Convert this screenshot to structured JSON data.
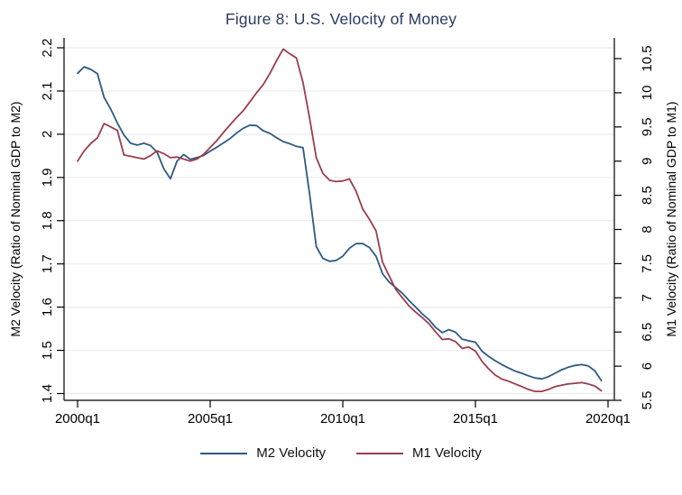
{
  "title": "Figure 8: U.S. Velocity of Money",
  "colors": {
    "m2_line": "#2e5a82",
    "m1_line": "#9b3d4d",
    "title_text": "#2b3a64",
    "gridline": "#eaecf0",
    "axis": "#000000"
  },
  "axes": {
    "left": {
      "title": "M2 Velocity (Ratio of Nominal GDP to M2)",
      "ticks": [
        "1.4",
        "1.5",
        "1.6",
        "1.7",
        "1.8",
        "1.9",
        "2",
        "2.1",
        "2.2"
      ],
      "range": [
        1.4,
        2.2
      ]
    },
    "right": {
      "title": "M1 Velocity (Ratio of Nominal GDP to M1)",
      "ticks": [
        "5.5",
        "6",
        "6.5",
        "7",
        "7.5",
        "8",
        "8.5",
        "9",
        "9.5",
        "10",
        "10.5"
      ],
      "range": [
        5.5,
        10.5
      ]
    },
    "x": {
      "ticks": [
        {
          "label": "2000q1",
          "q": 0
        },
        {
          "label": "2005q1",
          "q": 20
        },
        {
          "label": "2010q1",
          "q": 40
        },
        {
          "label": "2015q1",
          "q": 60
        },
        {
          "label": "2020q1",
          "q": 80
        }
      ],
      "range_quarters": [
        "2000q1",
        "2020q1"
      ]
    }
  },
  "legend": {
    "items": [
      {
        "label": "M2 Velocity",
        "color": "#2e5a82"
      },
      {
        "label": "M1 Velocity",
        "color": "#9b3d4d"
      }
    ]
  },
  "chart_data": {
    "type": "line",
    "title": "Figure 8: U.S. Velocity of Money",
    "x_start": "2000q1",
    "x_end": "2019q4",
    "frequency": "quarterly",
    "x_axis_range": [
      "2000q1",
      "2020q1"
    ],
    "grid": "horizontal",
    "legend_position": "bottom",
    "series": [
      {
        "name": "M2 Velocity",
        "axis": "left",
        "color": "#2e5a82",
        "ylabel": "M2 Velocity (Ratio of Nominal GDP to M2)",
        "ylim": [
          1.4,
          2.2
        ],
        "values": [
          2.141,
          2.156,
          2.15,
          2.14,
          2.085,
          2.058,
          2.026,
          1.998,
          1.979,
          1.975,
          1.979,
          1.974,
          1.958,
          1.92,
          1.897,
          1.938,
          1.953,
          1.942,
          1.946,
          1.951,
          1.961,
          1.97,
          1.98,
          1.99,
          2.003,
          2.014,
          2.021,
          2.02,
          2.008,
          2.002,
          1.992,
          1.983,
          1.978,
          1.972,
          1.969,
          1.86,
          1.74,
          1.713,
          1.706,
          1.708,
          1.718,
          1.736,
          1.747,
          1.747,
          1.738,
          1.718,
          1.677,
          1.658,
          1.645,
          1.632,
          1.615,
          1.6,
          1.584,
          1.571,
          1.553,
          1.541,
          1.548,
          1.542,
          1.526,
          1.522,
          1.519,
          1.498,
          1.486,
          1.476,
          1.467,
          1.459,
          1.452,
          1.447,
          1.441,
          1.436,
          1.434,
          1.439,
          1.447,
          1.455,
          1.461,
          1.465,
          1.467,
          1.464,
          1.453,
          1.43
        ]
      },
      {
        "name": "M1 Velocity",
        "axis": "right",
        "color": "#9b3d4d",
        "ylabel": "M1 Velocity (Ratio of Nominal GDP to M1)",
        "ylim": [
          5.5,
          10.5
        ],
        "values": [
          9.0,
          9.15,
          9.26,
          9.34,
          9.55,
          9.5,
          9.45,
          9.09,
          9.07,
          9.05,
          9.03,
          9.08,
          9.15,
          9.11,
          9.05,
          9.06,
          9.03,
          9.0,
          9.03,
          9.1,
          9.2,
          9.3,
          9.42,
          9.53,
          9.64,
          9.74,
          9.87,
          10.0,
          10.12,
          10.28,
          10.47,
          10.64,
          10.57,
          10.51,
          10.15,
          9.62,
          9.05,
          8.82,
          8.72,
          8.7,
          8.71,
          8.74,
          8.56,
          8.3,
          8.15,
          7.98,
          7.52,
          7.32,
          7.12,
          7.0,
          6.88,
          6.79,
          6.71,
          6.62,
          6.5,
          6.39,
          6.4,
          6.36,
          6.26,
          6.28,
          6.22,
          6.07,
          5.96,
          5.87,
          5.81,
          5.78,
          5.74,
          5.7,
          5.66,
          5.63,
          5.63,
          5.66,
          5.7,
          5.72,
          5.74,
          5.75,
          5.76,
          5.74,
          5.71,
          5.64
        ]
      }
    ]
  }
}
